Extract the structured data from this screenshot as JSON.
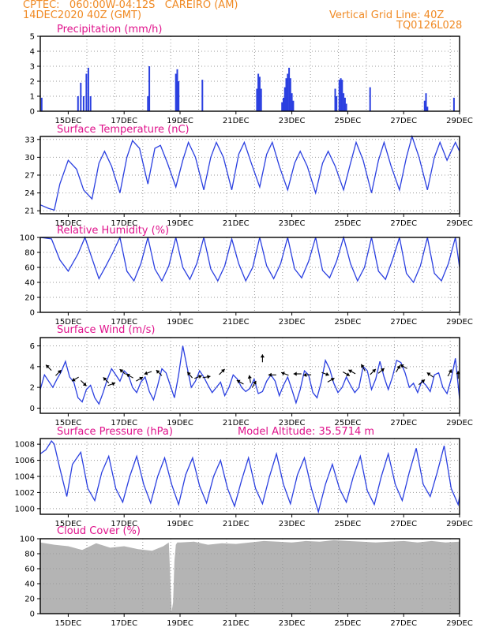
{
  "header": {
    "line1": "CPTEC:   060:00W-04:12S   CAREIRO (AM)",
    "line2": "14DEC2020 40Z (GMT)",
    "grid_note": "Vertical Grid Line: 40Z",
    "model_id": "TQ0126L028"
  },
  "colors": {
    "header": "#f08a24",
    "panel_title": "#e0138c",
    "series": "#2a3fe0",
    "cloud": "#b4b4b4",
    "grid": "#9a9a9a"
  },
  "chart_data": [
    {
      "id": "precip",
      "type": "bar",
      "title": "Precipitation (mm/h)",
      "ylim": [
        0,
        5
      ],
      "yticks": [
        0,
        1,
        2,
        3,
        4,
        5
      ],
      "x_unit": "day",
      "x_range": [
        14.0,
        29.0
      ],
      "x_tick_labels": [
        "15DEC",
        "17DEC",
        "19DEC",
        "21DEC",
        "23DEC",
        "25DEC",
        "27DEC",
        "29DEC"
      ],
      "bars": [
        [
          14.05,
          0.9
        ],
        [
          15.35,
          1.0
        ],
        [
          15.45,
          1.9
        ],
        [
          15.55,
          1.0
        ],
        [
          15.65,
          2.5
        ],
        [
          15.72,
          2.9
        ],
        [
          15.8,
          1.0
        ],
        [
          17.85,
          1.0
        ],
        [
          17.9,
          3.0
        ],
        [
          18.85,
          2.5
        ],
        [
          18.9,
          2.8
        ],
        [
          18.95,
          2.0
        ],
        [
          19.8,
          2.1
        ],
        [
          21.75,
          1.5
        ],
        [
          21.8,
          2.5
        ],
        [
          21.85,
          2.3
        ],
        [
          21.9,
          1.5
        ],
        [
          22.65,
          0.6
        ],
        [
          22.7,
          0.9
        ],
        [
          22.75,
          1.6
        ],
        [
          22.8,
          2.2
        ],
        [
          22.85,
          2.5
        ],
        [
          22.9,
          2.9
        ],
        [
          22.95,
          2.2
        ],
        [
          23.0,
          1.2
        ],
        [
          23.05,
          0.7
        ],
        [
          24.55,
          1.5
        ],
        [
          24.6,
          1.0
        ],
        [
          24.7,
          2.1
        ],
        [
          24.75,
          2.2
        ],
        [
          24.8,
          2.1
        ],
        [
          24.85,
          1.2
        ],
        [
          24.9,
          0.9
        ],
        [
          24.95,
          0.5
        ],
        [
          25.8,
          1.6
        ],
        [
          27.75,
          0.7
        ],
        [
          27.8,
          1.2
        ],
        [
          27.85,
          0.3
        ],
        [
          28.8,
          0.9
        ]
      ]
    },
    {
      "id": "temperature",
      "type": "line",
      "title": "Surface Temperature (nC)",
      "ylim": [
        20.5,
        33.5
      ],
      "yticks": [
        21,
        24,
        27,
        30,
        33
      ],
      "x_unit": "day",
      "x_range": [
        14.0,
        29.0
      ],
      "x_tick_labels": [
        "15DEC",
        "17DEC",
        "19DEC",
        "21DEC",
        "23DEC",
        "25DEC",
        "27DEC",
        "29DEC"
      ],
      "x": [
        14.0,
        14.3,
        14.45,
        14.5,
        14.7,
        15.0,
        15.3,
        15.55,
        15.85,
        16.1,
        16.3,
        16.55,
        16.85,
        17.1,
        17.3,
        17.55,
        17.85,
        18.1,
        18.3,
        18.55,
        18.85,
        19.1,
        19.3,
        19.55,
        19.85,
        20.1,
        20.3,
        20.55,
        20.85,
        21.1,
        21.3,
        21.55,
        21.85,
        22.1,
        22.3,
        22.55,
        22.85,
        23.1,
        23.3,
        23.55,
        23.85,
        24.1,
        24.3,
        24.55,
        24.85,
        25.1,
        25.3,
        25.55,
        25.85,
        26.1,
        26.3,
        26.55,
        26.85,
        27.1,
        27.3,
        27.55,
        27.85,
        28.1,
        28.3,
        28.55,
        28.85,
        29.0
      ],
      "y": [
        22,
        21.4,
        21.2,
        21.1,
        25.5,
        29.5,
        28.0,
        24.5,
        23.0,
        29.0,
        31.0,
        28.5,
        24.0,
        30.0,
        32.8,
        31.5,
        25.5,
        31.5,
        32.0,
        29.0,
        25.0,
        29.5,
        32.5,
        30.0,
        24.5,
        30.0,
        32.5,
        30.0,
        24.5,
        30.5,
        32.5,
        29.0,
        25.0,
        30.5,
        32.5,
        28.5,
        24.5,
        29.0,
        31.0,
        28.5,
        24.0,
        29.0,
        31.0,
        28.5,
        24.5,
        29.0,
        32.5,
        29.5,
        24.0,
        29.5,
        32.5,
        28.5,
        24.5,
        30.0,
        33.5,
        30.0,
        24.5,
        30.0,
        32.5,
        29.5,
        32.5,
        31.0
      ]
    },
    {
      "id": "humidity",
      "type": "line",
      "title": "Relative Humidity (%)",
      "ylim": [
        0,
        100
      ],
      "yticks": [
        0,
        20,
        40,
        60,
        80,
        100
      ],
      "x_unit": "day",
      "x_range": [
        14.0,
        29.0
      ],
      "x_tick_labels": [
        "15DEC",
        "17DEC",
        "19DEC",
        "21DEC",
        "23DEC",
        "25DEC",
        "27DEC",
        "29DEC"
      ],
      "x": [
        14.0,
        14.4,
        14.7,
        15.0,
        15.35,
        15.6,
        15.85,
        16.1,
        16.35,
        16.6,
        16.85,
        17.1,
        17.35,
        17.6,
        17.85,
        18.1,
        18.35,
        18.6,
        18.85,
        19.1,
        19.35,
        19.6,
        19.85,
        20.1,
        20.35,
        20.6,
        20.85,
        21.1,
        21.35,
        21.6,
        21.85,
        22.1,
        22.35,
        22.6,
        22.85,
        23.1,
        23.35,
        23.6,
        23.85,
        24.1,
        24.35,
        24.6,
        24.85,
        25.1,
        25.35,
        25.6,
        25.85,
        26.1,
        26.35,
        26.6,
        26.85,
        27.1,
        27.35,
        27.6,
        27.85,
        28.1,
        28.35,
        28.6,
        28.85,
        29.0
      ],
      "y": [
        100,
        98,
        70,
        55,
        78,
        100,
        72,
        45,
        62,
        80,
        100,
        55,
        42,
        65,
        100,
        58,
        42,
        62,
        100,
        60,
        44,
        65,
        100,
        58,
        42,
        62,
        98,
        65,
        42,
        60,
        100,
        62,
        45,
        65,
        100,
        58,
        46,
        68,
        100,
        56,
        46,
        68,
        100,
        65,
        42,
        60,
        100,
        55,
        44,
        70,
        100,
        52,
        40,
        62,
        100,
        52,
        42,
        65,
        100,
        60
      ]
    },
    {
      "id": "wind",
      "type": "line",
      "title": "Surface Wind (m/s)",
      "ylim": [
        -0.5,
        6.8
      ],
      "yticks": [
        0,
        2,
        4,
        6
      ],
      "x_unit": "day",
      "x_range": [
        14.0,
        29.0
      ],
      "x_tick_labels": [
        "15DEC",
        "17DEC",
        "19DEC",
        "21DEC",
        "23DEC",
        "25DEC",
        "27DEC",
        "29DEC"
      ],
      "x": [
        14.0,
        14.15,
        14.3,
        14.45,
        14.6,
        14.75,
        14.9,
        15.05,
        15.2,
        15.35,
        15.5,
        15.65,
        15.8,
        15.95,
        16.1,
        16.25,
        16.4,
        16.55,
        16.7,
        16.85,
        17.0,
        17.15,
        17.3,
        17.45,
        17.6,
        17.75,
        17.9,
        18.05,
        18.2,
        18.35,
        18.5,
        18.65,
        18.8,
        18.95,
        19.1,
        19.25,
        19.4,
        19.55,
        19.7,
        19.85,
        20.0,
        20.15,
        20.3,
        20.45,
        20.6,
        20.75,
        20.9,
        21.05,
        21.2,
        21.35,
        21.5,
        21.65,
        21.8,
        21.95,
        22.1,
        22.25,
        22.4,
        22.55,
        22.7,
        22.85,
        23.0,
        23.15,
        23.3,
        23.45,
        23.6,
        23.75,
        23.9,
        24.05,
        24.2,
        24.35,
        24.5,
        24.65,
        24.8,
        24.95,
        25.1,
        25.25,
        25.4,
        25.55,
        25.7,
        25.85,
        26.0,
        26.15,
        26.3,
        26.45,
        26.6,
        26.75,
        26.9,
        27.05,
        27.2,
        27.35,
        27.5,
        27.65,
        27.8,
        27.95,
        28.1,
        28.25,
        28.4,
        28.55,
        28.7,
        28.85,
        29.0
      ],
      "y": [
        1.8,
        3.2,
        2.6,
        2.0,
        2.8,
        3.5,
        4.5,
        3.0,
        2.5,
        1.0,
        0.6,
        1.8,
        2.2,
        1.0,
        0.4,
        1.5,
        2.8,
        3.8,
        3.2,
        2.6,
        3.6,
        3.2,
        2.0,
        1.5,
        2.5,
        3.0,
        1.6,
        0.8,
        2.2,
        3.8,
        3.4,
        2.2,
        1.0,
        3.2,
        6.0,
        4.0,
        2.0,
        2.6,
        3.6,
        3.0,
        2.2,
        1.5,
        2.0,
        2.5,
        1.2,
        2.0,
        3.2,
        2.8,
        2.0,
        1.6,
        1.9,
        2.8,
        1.4,
        1.6,
        2.6,
        3.2,
        2.6,
        1.2,
        2.2,
        3.0,
        1.8,
        0.5,
        1.8,
        3.6,
        3.2,
        1.5,
        1.0,
        2.5,
        4.6,
        3.8,
        2.4,
        1.5,
        2.0,
        3.0,
        2.2,
        1.5,
        2.0,
        4.0,
        3.6,
        1.8,
        2.8,
        4.5,
        3.0,
        1.8,
        3.0,
        4.6,
        4.4,
        3.4,
        2.0,
        2.4,
        1.5,
        2.6,
        2.2,
        1.6,
        3.2,
        3.4,
        2.0,
        1.4,
        2.8,
        4.8,
        0.9
      ]
    },
    {
      "id": "pressure",
      "type": "line",
      "title": "Surface Pressure (hPa)",
      "annotation": "Model Altitude: 35.5714 m",
      "ylim": [
        999.3,
        1008.7
      ],
      "yticks": [
        1000,
        1002,
        1004,
        1006,
        1008
      ],
      "x_unit": "day",
      "x_range": [
        14.0,
        29.0
      ],
      "x_tick_labels": [
        "15DEC",
        "17DEC",
        "19DEC",
        "21DEC",
        "23DEC",
        "25DEC",
        "27DEC",
        "29DEC"
      ],
      "x": [
        14.0,
        14.2,
        14.4,
        14.5,
        14.7,
        14.95,
        15.15,
        15.45,
        15.7,
        15.95,
        16.2,
        16.45,
        16.7,
        16.95,
        17.2,
        17.45,
        17.7,
        17.95,
        18.2,
        18.45,
        18.7,
        18.95,
        19.2,
        19.45,
        19.7,
        19.95,
        20.2,
        20.45,
        20.7,
        20.95,
        21.2,
        21.45,
        21.7,
        21.95,
        22.2,
        22.45,
        22.7,
        22.95,
        23.2,
        23.45,
        23.7,
        23.95,
        24.2,
        24.45,
        24.7,
        24.95,
        25.2,
        25.45,
        25.7,
        25.95,
        26.2,
        26.45,
        26.7,
        26.95,
        27.2,
        27.45,
        27.7,
        27.95,
        28.2,
        28.45,
        28.7,
        28.95,
        29.0
      ],
      "y": [
        1006.8,
        1007.3,
        1008.4,
        1008.0,
        1005.0,
        1001.5,
        1005.5,
        1007.0,
        1002.5,
        1001.0,
        1004.5,
        1006.5,
        1002.5,
        1000.8,
        1004.0,
        1006.5,
        1003.0,
        1000.7,
        1004.0,
        1006.3,
        1003.0,
        1000.5,
        1004.2,
        1006.3,
        1002.8,
        1000.7,
        1004.0,
        1006.0,
        1002.5,
        1000.3,
        1003.5,
        1006.3,
        1002.5,
        1000.6,
        1004.0,
        1006.8,
        1003.0,
        1000.6,
        1004.2,
        1006.3,
        1002.5,
        999.6,
        1003.0,
        1005.5,
        1002.5,
        1000.8,
        1004.0,
        1006.5,
        1002.2,
        1000.5,
        1004.0,
        1006.8,
        1003.0,
        1001.0,
        1004.5,
        1007.5,
        1003.0,
        1001.5,
        1004.5,
        1007.8,
        1002.5,
        1000.5,
        1001.5
      ]
    },
    {
      "id": "cloud",
      "type": "area",
      "title": "Cloud Cover (%)",
      "ylim": [
        0,
        100
      ],
      "yticks": [
        0,
        20,
        40,
        60,
        80,
        100
      ],
      "x_unit": "day",
      "x_range": [
        14.0,
        29.0
      ],
      "x_tick_labels": [
        "15DEC",
        "17DEC",
        "19DEC",
        "21DEC",
        "23DEC",
        "25DEC",
        "27DEC",
        "29DEC"
      ],
      "x": [
        14.0,
        14.5,
        15.0,
        15.5,
        16.0,
        16.5,
        17.0,
        17.5,
        18.0,
        18.4,
        18.6,
        18.7,
        18.75,
        18.8,
        18.85,
        18.9,
        19.0,
        19.5,
        20.0,
        20.5,
        21.0,
        21.5,
        22.0,
        22.5,
        23.0,
        23.5,
        24.0,
        24.5,
        25.0,
        25.5,
        26.0,
        26.5,
        27.0,
        27.5,
        28.0,
        28.5,
        29.0
      ],
      "y": [
        95,
        92,
        90,
        85,
        94,
        88,
        90,
        86,
        84,
        90,
        95,
        3,
        15,
        70,
        92,
        95,
        95,
        96,
        92,
        94,
        93,
        95,
        97,
        96,
        95,
        97,
        96,
        98,
        97,
        96,
        95,
        96,
        97,
        95,
        97,
        95,
        96
      ]
    }
  ]
}
